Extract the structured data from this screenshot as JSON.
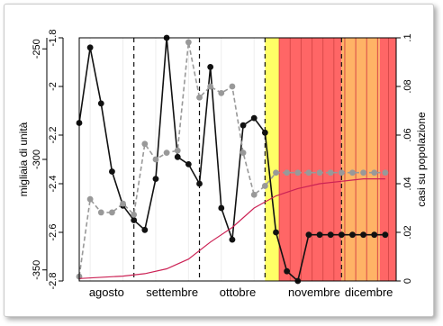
{
  "chart_data": {
    "type": "line",
    "x_range": [
      0,
      29
    ],
    "months": [
      {
        "label": "agosto",
        "center": 2.5
      },
      {
        "label": "settembre",
        "center": 8.5
      },
      {
        "label": "ottobre",
        "center": 14.5
      },
      {
        "label": "novembre",
        "center": 21.5
      },
      {
        "label": "dicembre",
        "center": 26.5
      }
    ],
    "dashed_month_separators": [
      5,
      11,
      17,
      24
    ],
    "left_axis_outer": {
      "label": "migliaia di unità",
      "ticks": [
        -250,
        -300,
        -350
      ],
      "ylim": [
        -355,
        -245
      ]
    },
    "left_axis_inner": {
      "ticks": [
        -1.8,
        -2,
        -2.2,
        -2.4,
        -2.6,
        -2.8
      ],
      "ylim": [
        -2.8,
        -1.8
      ]
    },
    "right_axis": {
      "label": "casi su popolazione",
      "ticks": [
        0,
        0.02,
        0.04,
        0.06,
        0.08,
        0.1
      ],
      "tick_labels": [
        "0",
        ".02",
        ".04",
        ".06",
        ".08",
        ".1"
      ],
      "ylim": [
        0,
        0.1
      ]
    },
    "shaded_regions": [
      {
        "from": 17,
        "to": 18.3,
        "color": "#ffff66"
      },
      {
        "from": 18.3,
        "to": 24,
        "color": "#ff6666"
      },
      {
        "from": 24,
        "to": 27.5,
        "color": "#ffb366"
      },
      {
        "from": 27.5,
        "to": 29,
        "color": "#ff6666"
      }
    ],
    "series": [
      {
        "axis": "left_inner",
        "style": "solid",
        "color": "#111111",
        "x": [
          0,
          1,
          2,
          3,
          4,
          5,
          6,
          7,
          8,
          9,
          10,
          11,
          12,
          13,
          14,
          15,
          16,
          17,
          18,
          19,
          20,
          21,
          22,
          23,
          24,
          25,
          26,
          27,
          28
        ],
        "y": [
          -2.15,
          -1.84,
          -2.07,
          -2.35,
          -2.49,
          -2.55,
          -2.59,
          -2.38,
          -1.8,
          -2.29,
          -2.32,
          -2.4,
          -1.92,
          -2.5,
          -2.63,
          -2.16,
          -2.13,
          -2.19,
          -2.6,
          -2.76,
          -2.8,
          -2.61,
          -2.61,
          -2.61,
          -2.61,
          -2.61,
          -2.61,
          -2.61,
          -2.61
        ]
      },
      {
        "axis": "left_outer",
        "style": "dashed",
        "color": "#999999",
        "x": [
          0,
          1,
          2,
          3,
          4,
          5,
          6,
          7,
          8,
          9,
          10,
          11,
          12,
          13,
          14,
          15,
          16,
          17,
          18,
          19,
          20,
          21,
          22,
          23,
          24,
          25,
          26,
          27,
          28
        ],
        "y": [
          -353,
          -318,
          -324,
          -324,
          -320,
          -325,
          -293,
          -300,
          -297,
          -296,
          -247,
          -272,
          -267,
          -270,
          -267,
          -297,
          -316,
          -312,
          -306,
          -306,
          -306,
          -306,
          -306,
          -306,
          -306,
          -306,
          -306,
          -306,
          -306
        ]
      },
      {
        "axis": "right",
        "style": "solid",
        "color": "#cc2255",
        "x": [
          0,
          2,
          4,
          6,
          8,
          10,
          12,
          14,
          16,
          18,
          20,
          22,
          24,
          26,
          28
        ],
        "y": [
          0.001,
          0.0015,
          0.002,
          0.003,
          0.005,
          0.009,
          0.016,
          0.022,
          0.03,
          0.035,
          0.038,
          0.04,
          0.041,
          0.042,
          0.042
        ]
      }
    ]
  }
}
